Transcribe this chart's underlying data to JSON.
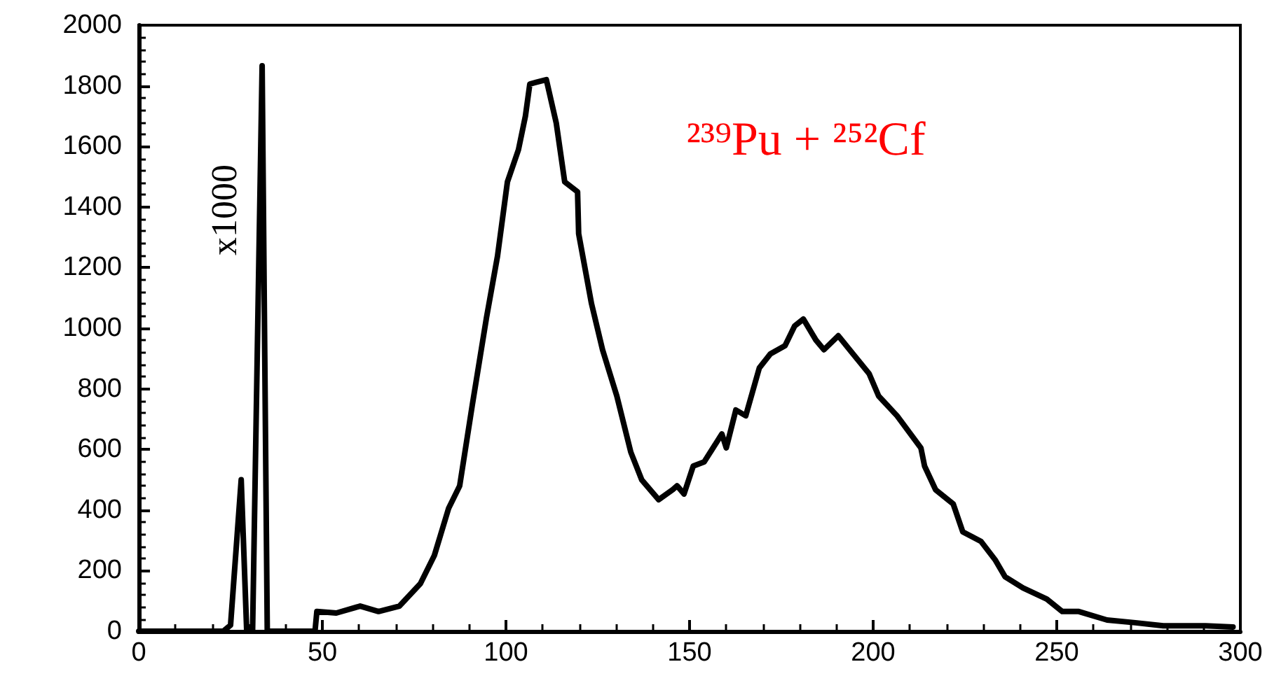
{
  "chart_data": {
    "type": "line",
    "x": [
      0,
      10,
      20,
      23,
      25,
      27.9,
      29.4,
      31,
      33.6,
      35,
      40,
      48,
      48.5,
      53.8,
      60.3,
      65.3,
      71,
      76.7,
      80.5,
      84.4,
      87.4,
      90.8,
      94.7,
      97.7,
      100.4,
      103.4,
      105.3,
      106.5,
      111,
      113.7,
      116,
      119.5,
      119.8,
      123.3,
      126.3,
      130.2,
      134,
      137,
      141.6,
      145.4,
      146.6,
      148.5,
      151,
      154,
      158.8,
      160,
      162.6,
      165.3,
      169,
      172,
      176,
      178.6,
      181,
      184.4,
      186.6,
      190.5,
      195.8,
      198.9,
      201.5,
      206.5,
      213,
      214,
      217,
      221.8,
      224.4,
      229.4,
      233.2,
      235.9,
      240.8,
      247.3,
      251.5,
      256,
      263.7,
      271.4,
      279,
      290.5,
      298
    ],
    "series": [
      {
        "color": "#000000",
        "values": [
          0,
          0,
          0,
          0,
          20,
          500,
          0,
          0,
          1866,
          0,
          0,
          0,
          65,
          60,
          83,
          65,
          83,
          157,
          250,
          406,
          480,
          744,
          1035,
          1238,
          1483,
          1589,
          1700,
          1806,
          1820,
          1677,
          1483,
          1450,
          1312,
          1081,
          929,
          776,
          591,
          499,
          434,
          467,
          480,
          453,
          545,
          559,
          651,
          605,
          730,
          711,
          869,
          915,
          942,
          1007,
          1030,
          961,
          929,
          975,
          896,
          850,
          776,
          711,
          605,
          545,
          467,
          420,
          328,
          296,
          236,
          180,
          143,
          106,
          65,
          65,
          37,
          28,
          18,
          18,
          14
        ]
      }
    ],
    "xlim": [
      0,
      300
    ],
    "xticks": [
      0,
      50,
      100,
      150,
      200,
      250,
      300
    ],
    "ylim": [
      0,
      2000
    ],
    "yticks": [
      0,
      200,
      400,
      600,
      800,
      1000,
      1200,
      1400,
      1600,
      1800,
      2000
    ],
    "grid": false,
    "marker": "none",
    "line_style": "solid",
    "annotations": [
      "x1000",
      "²³⁹Pu + ²⁵²Cf"
    ]
  }
}
